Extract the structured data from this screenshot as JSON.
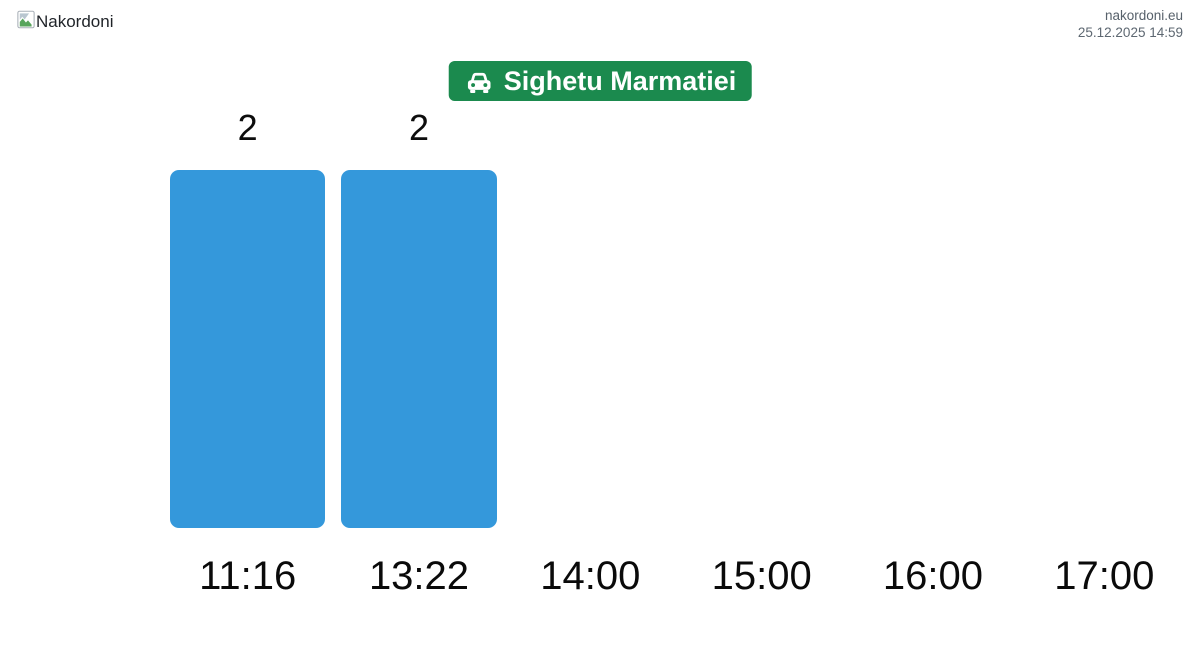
{
  "header": {
    "logo_text": "Nakordoni",
    "site_link": "nakordoni.eu",
    "timestamp": "25.12.2025 14:59"
  },
  "destination_badge": {
    "label": "Sighetu Marmatiei"
  },
  "chart_data": {
    "type": "bar",
    "title": "Sighetu Marmatiei",
    "categories": [
      "11:16",
      "13:22",
      "14:00",
      "15:00",
      "16:00",
      "17:00"
    ],
    "values": [
      2,
      2,
      0,
      0,
      0,
      0
    ],
    "value_labels": [
      "2",
      "2",
      "",
      "",
      "",
      ""
    ],
    "xlabel": "",
    "ylabel": "",
    "ylim": [
      0,
      2
    ],
    "grid": false,
    "legend": "none"
  },
  "colors": {
    "badge_green": "#1b8a4e",
    "bar_blue": "#3498db",
    "label_black": "#0d0d0d",
    "site_link_gray": "#57616b",
    "timestamp_gray": "#5d6771"
  }
}
